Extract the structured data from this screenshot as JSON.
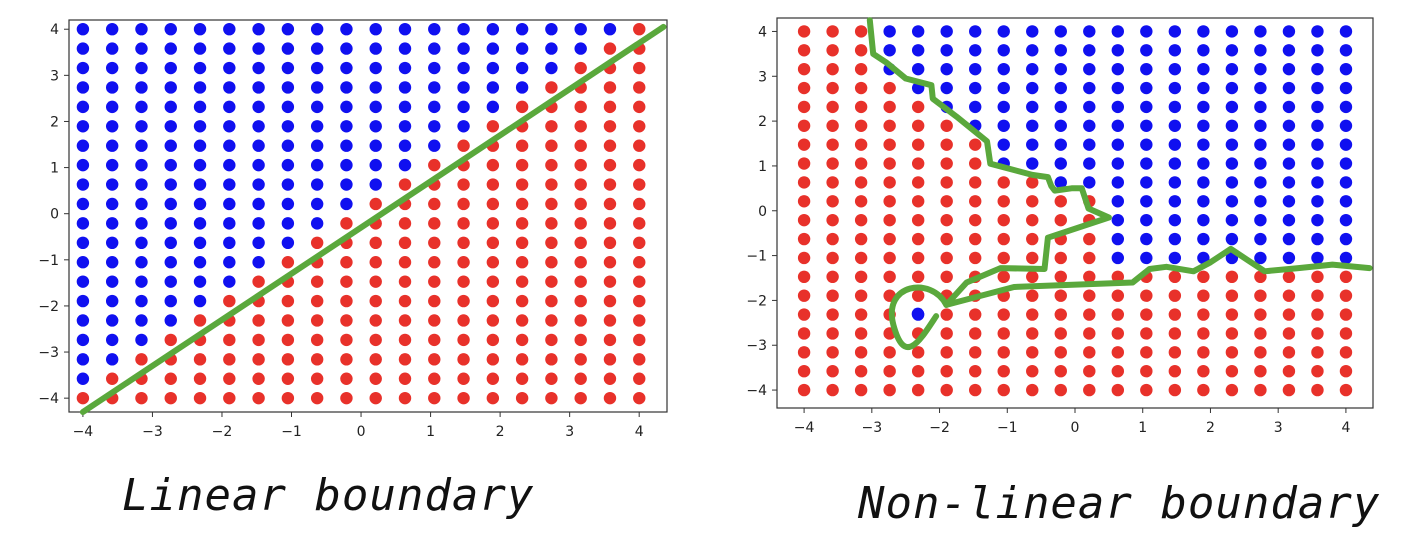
{
  "captions": {
    "left": "Linear boundary",
    "right": "Non-linear boundary"
  },
  "colors": {
    "class_a": "#1010f0",
    "class_b": "#e8312a",
    "boundary": "#5aa83c",
    "axes": "#333333"
  },
  "chart_data": [
    {
      "type": "scatter",
      "title": "",
      "xlabel": "",
      "ylabel": "",
      "xlim": [
        -4.2,
        4.4
      ],
      "ylim": [
        -4.3,
        4.2
      ],
      "xticks": [
        -4,
        -3,
        -2,
        -1,
        0,
        1,
        2,
        3,
        4
      ],
      "yticks": [
        -4,
        -3,
        -2,
        -1,
        0,
        1,
        2,
        3,
        4
      ],
      "xtick_labels": [
        "−4",
        "−3",
        "−2",
        "−1",
        "0",
        "1",
        "2",
        "3",
        "4"
      ],
      "ytick_labels": [
        "−4",
        "−3",
        "−2",
        "−1",
        "0",
        "1",
        "2",
        "3",
        "4"
      ],
      "grid_points": {
        "start": -4,
        "stop": 4,
        "step": 0.4211
      },
      "classes": [
        {
          "color": "blue",
          "rule": "y > x"
        },
        {
          "color": "red",
          "rule": "y <= x"
        }
      ],
      "boundary": {
        "kind": "line",
        "points": [
          [
            -4,
            -4.3
          ],
          [
            4.35,
            4.05
          ]
        ]
      },
      "grid": false
    },
    {
      "type": "scatter",
      "title": "",
      "xlabel": "",
      "ylabel": "",
      "xlim": [
        -4.4,
        4.4
      ],
      "ylim": [
        -4.4,
        4.3
      ],
      "xticks": [
        -4,
        -3,
        -2,
        -1,
        0,
        1,
        2,
        3,
        4
      ],
      "yticks": [
        -4,
        -3,
        -2,
        -1,
        0,
        1,
        2,
        3,
        4
      ],
      "xtick_labels": [
        "−4",
        "−3",
        "−2",
        "−1",
        "0",
        "1",
        "2",
        "3",
        "4"
      ],
      "ytick_labels": [
        "−4",
        "−3",
        "−2",
        "−1",
        "0",
        "1",
        "2",
        "3",
        "4"
      ],
      "grid_points": {
        "start": -4,
        "stop": 4,
        "step": 0.4211
      },
      "classes": [
        {
          "color": "blue",
          "rule": "region above the hand-drawn curve"
        },
        {
          "color": "red",
          "rule": "region below / left of the curve"
        }
      ],
      "boundary": {
        "kind": "freehand",
        "points": [
          [
            -3.03,
            4.25
          ],
          [
            -2.98,
            3.5
          ],
          [
            -2.78,
            3.3
          ],
          [
            -2.5,
            2.95
          ],
          [
            -2.12,
            2.8
          ],
          [
            -2.1,
            2.5
          ],
          [
            -1.75,
            2.1
          ],
          [
            -1.3,
            1.55
          ],
          [
            -1.25,
            1.05
          ],
          [
            -0.63,
            0.8
          ],
          [
            -0.4,
            0.75
          ],
          [
            -0.35,
            0.55
          ],
          [
            -0.3,
            0.45
          ],
          [
            -0.05,
            0.5
          ],
          [
            0.1,
            0.5
          ],
          [
            0.2,
            0.05
          ],
          [
            0.5,
            -0.15
          ],
          [
            -0.4,
            -0.6
          ],
          [
            -0.45,
            -1.3
          ],
          [
            -1.1,
            -1.28
          ],
          [
            -1.6,
            -1.6
          ],
          [
            -1.9,
            -2.1
          ],
          [
            -0.9,
            -1.7
          ],
          [
            0.85,
            -1.6
          ],
          [
            1.1,
            -1.3
          ],
          [
            1.35,
            -1.25
          ],
          [
            1.75,
            -1.35
          ],
          [
            2.0,
            -1.15
          ],
          [
            2.3,
            -0.85
          ],
          [
            2.55,
            -1.1
          ],
          [
            2.8,
            -1.35
          ],
          [
            3.3,
            -1.28
          ],
          [
            3.8,
            -1.2
          ],
          [
            4.35,
            -1.28
          ]
        ],
        "loop": {
          "center": [
            -2.4,
            -2.3
          ],
          "radius": 0.28
        }
      },
      "special_point": {
        "x": -2.32,
        "y": -2.3,
        "color": "blue"
      },
      "grid": false
    }
  ]
}
